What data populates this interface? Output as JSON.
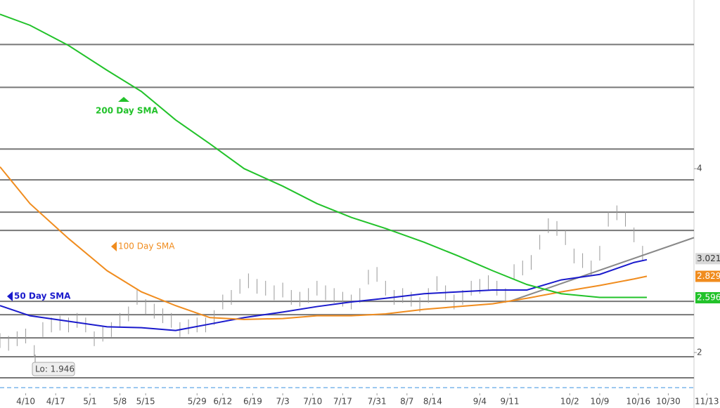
{
  "chart_data": {
    "type": "ohlc",
    "xlim": [
      0,
      162
    ],
    "ylim": [
      1.557,
      5.835
    ],
    "yticks": [
      2,
      4
    ],
    "xticks": [
      {
        "value": 6,
        "label": "4/10"
      },
      {
        "value": 13,
        "label": "4/17"
      },
      {
        "value": 21,
        "label": "5/1"
      },
      {
        "value": 28,
        "label": "5/8"
      },
      {
        "value": 34,
        "label": "5/15"
      },
      {
        "value": 46,
        "label": "5/29"
      },
      {
        "value": 52,
        "label": "6/12"
      },
      {
        "value": 59,
        "label": "6/19"
      },
      {
        "value": 66,
        "label": "7/3"
      },
      {
        "value": 73,
        "label": "7/10"
      },
      {
        "value": 80,
        "label": "7/17"
      },
      {
        "value": 88,
        "label": "7/31"
      },
      {
        "value": 95,
        "label": "8/7"
      },
      {
        "value": 101,
        "label": "8/14"
      },
      {
        "value": 112,
        "label": "9/4"
      },
      {
        "value": 119,
        "label": "9/11"
      },
      {
        "value": 133,
        "label": "10/2"
      },
      {
        "value": 140,
        "label": "10/9"
      },
      {
        "value": 149,
        "label": "10/16"
      },
      {
        "value": 156,
        "label": "10/30"
      },
      {
        "value": 165,
        "label": "11/13"
      }
    ],
    "levels": [
      5.351,
      4.885,
      4.214,
      3.878,
      3.527,
      3.328,
      2.557,
      2.412,
      2.16,
      1.954,
      1.725
    ],
    "level_color": "#777",
    "dashed_level": 1.618,
    "dashed_color": "#9cc8f0",
    "price": {
      "color": "#999",
      "x": [
        0,
        2,
        4,
        6,
        8,
        10,
        12,
        14,
        16,
        18,
        20,
        22,
        24,
        26,
        28,
        30,
        32,
        34,
        36,
        38,
        40,
        42,
        44,
        46,
        48,
        50,
        52,
        54,
        56,
        58,
        60,
        62,
        64,
        66,
        68,
        70,
        72,
        74,
        76,
        78,
        80,
        82,
        84,
        86,
        88,
        90,
        92,
        94,
        96,
        98,
        100,
        102,
        104,
        106,
        108,
        110,
        112,
        114,
        116,
        118,
        120,
        122,
        124,
        126,
        128,
        130,
        132,
        134,
        136,
        138,
        140,
        142,
        144,
        146,
        148,
        150
      ],
      "high": [
        2.21,
        2.18,
        2.23,
        2.26,
        2.08,
        2.33,
        2.38,
        2.4,
        2.38,
        2.43,
        2.38,
        2.23,
        2.28,
        2.33,
        2.43,
        2.5,
        2.68,
        2.58,
        2.53,
        2.48,
        2.43,
        2.33,
        2.36,
        2.38,
        2.38,
        2.46,
        2.63,
        2.68,
        2.8,
        2.86,
        2.8,
        2.78,
        2.73,
        2.76,
        2.68,
        2.66,
        2.7,
        2.78,
        2.73,
        2.7,
        2.66,
        2.63,
        2.7,
        2.9,
        2.93,
        2.78,
        2.68,
        2.7,
        2.66,
        2.6,
        2.7,
        2.83,
        2.73,
        2.63,
        2.68,
        2.78,
        2.8,
        2.84,
        2.78,
        2.7,
        2.96,
        3.0,
        3.06,
        3.28,
        3.46,
        3.43,
        3.33,
        3.13,
        3.08,
        3.0,
        3.16,
        3.53,
        3.6,
        3.53,
        3.36,
        3.16
      ],
      "low": [
        2.05,
        2.02,
        2.07,
        2.1,
        1.946,
        2.17,
        2.22,
        2.24,
        2.22,
        2.27,
        2.22,
        2.07,
        2.12,
        2.17,
        2.27,
        2.34,
        2.52,
        2.42,
        2.37,
        2.32,
        2.27,
        2.17,
        2.2,
        2.22,
        2.22,
        2.3,
        2.47,
        2.52,
        2.64,
        2.7,
        2.64,
        2.62,
        2.57,
        2.6,
        2.52,
        2.5,
        2.54,
        2.62,
        2.57,
        2.54,
        2.5,
        2.47,
        2.54,
        2.74,
        2.77,
        2.62,
        2.52,
        2.54,
        2.5,
        2.44,
        2.54,
        2.67,
        2.57,
        2.47,
        2.52,
        2.62,
        2.64,
        2.68,
        2.62,
        2.54,
        2.8,
        2.84,
        2.9,
        3.12,
        3.3,
        3.27,
        3.17,
        2.97,
        2.92,
        2.84,
        3.0,
        3.37,
        3.44,
        3.37,
        3.2,
        3.0
      ]
    },
    "sma_x": [
      0,
      7,
      16,
      25,
      33,
      41,
      49,
      57,
      66,
      74,
      82,
      90,
      99,
      107,
      115,
      123,
      131,
      140,
      148,
      151
    ],
    "series": [
      {
        "name": "50 Day SMA",
        "color": "#1a1acc",
        "values": [
          2.51,
          2.4,
          2.34,
          2.28,
          2.27,
          2.24,
          2.31,
          2.38,
          2.44,
          2.5,
          2.55,
          2.59,
          2.64,
          2.66,
          2.68,
          2.68,
          2.79,
          2.85,
          2.98,
          3.01
        ]
      },
      {
        "name": "100  Day SMA",
        "color": "#f08c1e",
        "values": [
          4.02,
          3.62,
          3.24,
          2.89,
          2.66,
          2.51,
          2.38,
          2.36,
          2.37,
          2.4,
          2.4,
          2.42,
          2.47,
          2.5,
          2.53,
          2.59,
          2.66,
          2.73,
          2.8,
          2.83
        ]
      },
      {
        "name": "200 Day SMA",
        "color": "#22c22a",
        "values": [
          5.68,
          5.56,
          5.34,
          5.07,
          4.84,
          4.53,
          4.27,
          4.0,
          3.81,
          3.62,
          3.47,
          3.35,
          3.2,
          3.05,
          2.89,
          2.74,
          2.64,
          2.6,
          2.6,
          2.6
        ]
      }
    ],
    "trendline": {
      "x": [
        119,
        162
      ],
      "values": [
        2.557,
        3.25
      ],
      "color": "#888"
    },
    "price_tags": [
      {
        "value": 3.021,
        "color": "#d8d8d8",
        "text_color": "#333"
      },
      {
        "value": 2.829,
        "color": "#f08c1e",
        "text_color": "#fff"
      },
      {
        "value": 2.596,
        "color": "#22c22a",
        "text_color": "#fff"
      }
    ],
    "annotations": [
      {
        "text": "Lo: 1.946"
      }
    ]
  }
}
